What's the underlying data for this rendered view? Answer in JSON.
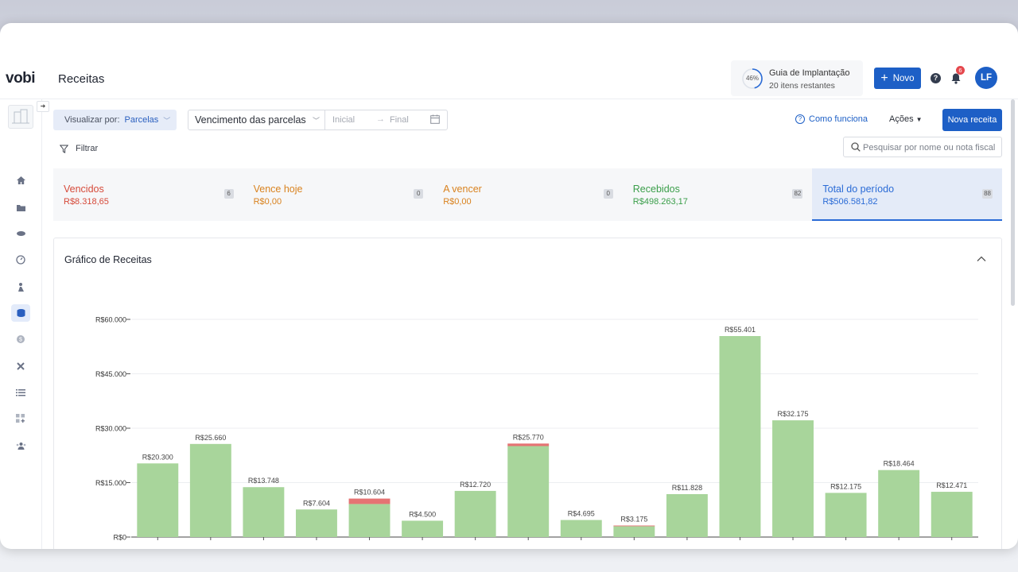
{
  "app": {
    "logo": "vobi",
    "page_title": "Receitas"
  },
  "header": {
    "guide": {
      "percent": "46%",
      "progress": 0.46,
      "title": "Guia de Implantação",
      "subtitle": "20 itens restantes"
    },
    "new_button": "Novo",
    "help_icon": "question-icon",
    "notifications_badge": "6",
    "avatar_initials": "LF"
  },
  "sidebar": {
    "items": [
      {
        "icon": "home-icon",
        "active": false
      },
      {
        "icon": "folder-icon",
        "active": false
      },
      {
        "icon": "handshake-icon",
        "active": false
      },
      {
        "icon": "gauge-icon",
        "active": false
      },
      {
        "icon": "worker-icon",
        "active": false
      },
      {
        "icon": "coins-icon",
        "active": true
      },
      {
        "icon": "dollar-icon",
        "active": false
      },
      {
        "icon": "tools-icon",
        "active": false
      },
      {
        "icon": "list-icon",
        "active": false
      },
      {
        "icon": "grid-add-icon",
        "active": false
      },
      {
        "icon": "team-icon",
        "active": false
      }
    ]
  },
  "filters": {
    "view_by_label": "Visualizar por:",
    "view_by_value": "Parcelas",
    "due_select": "Vencimento das parcelas",
    "date_start_placeholder": "Inicial",
    "date_end_placeholder": "Final",
    "how_it_works": "Como funciona",
    "actions": "Ações",
    "new_revenue": "Nova receita",
    "filter_label": "Filtrar",
    "search_placeholder": "Pesquisar por nome ou nota fiscal"
  },
  "summary": [
    {
      "label": "Vencidos",
      "value": "R$8.318,65",
      "count": "6",
      "color": "#d64a3a"
    },
    {
      "label": "Vence hoje",
      "value": "R$0,00",
      "count": "0",
      "color": "#d9821f"
    },
    {
      "label": "A vencer",
      "value": "R$0,00",
      "count": "0",
      "color": "#d9821f"
    },
    {
      "label": "Recebidos",
      "value": "R$498.263,17",
      "count": "82",
      "color": "#3a9e4a"
    },
    {
      "label": "Total do período",
      "value": "R$506.581,82",
      "count": "88",
      "color": "#2a6bd6"
    }
  ],
  "panel": {
    "title": "Gráfico de Receitas"
  },
  "chart_data": {
    "type": "bar",
    "stacked": true,
    "ylim": [
      0,
      60000
    ],
    "yticks": [
      0,
      15000,
      30000,
      45000,
      60000
    ],
    "ytick_labels": [
      "R$0",
      "R$15.000",
      "R$30.000",
      "R$45.000",
      "R$60.000"
    ],
    "grid": true,
    "series": [
      {
        "values": [
          20300,
          25660,
          13748,
          7604,
          9104,
          4500,
          12720,
          25070,
          4695,
          2975,
          11828,
          55401,
          32175,
          12175,
          18464,
          12471
        ],
        "color": "#a8d59b"
      },
      {
        "values": [
          0,
          0,
          0,
          0,
          1500,
          0,
          0,
          700,
          0,
          200,
          0,
          0,
          0,
          0,
          0,
          0
        ],
        "color": "#e57373"
      }
    ],
    "data_labels": [
      "R$20.300",
      "R$25.660",
      "R$13.748",
      "R$7.604",
      "R$10.604",
      "R$4.500",
      "R$12.720",
      "R$25.770",
      "R$4.695",
      "R$3.175",
      "R$11.828",
      "R$55.401",
      "R$32.175",
      "R$12.175",
      "R$18.464",
      "R$12.471"
    ]
  }
}
